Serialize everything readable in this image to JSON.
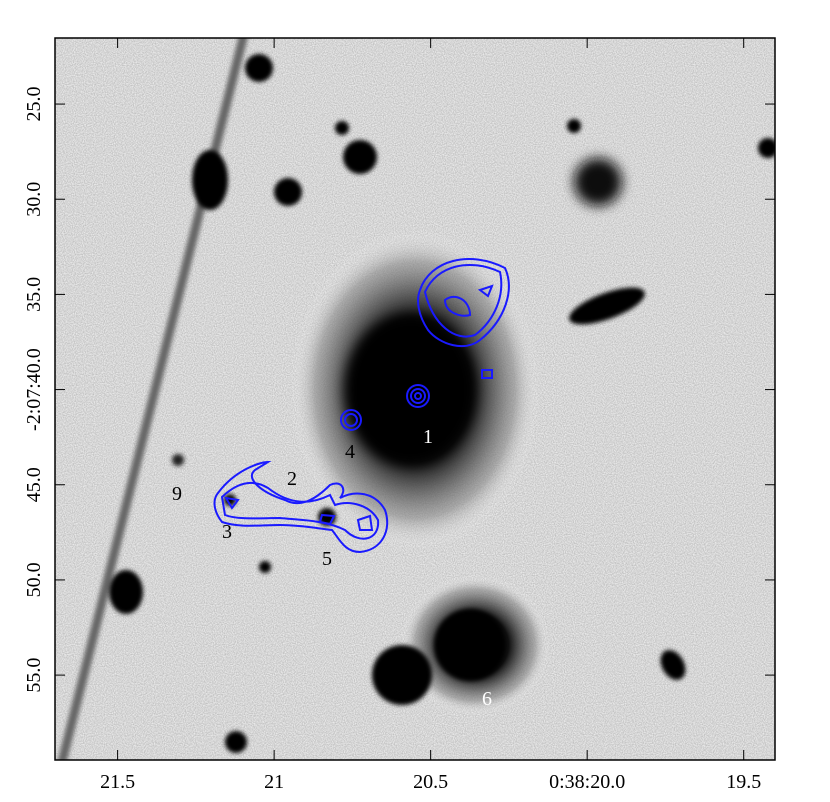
{
  "chart_data": {
    "type": "image",
    "xlim": [
      21.7,
      19.4
    ],
    "xticks": [
      21.5,
      21.0,
      20.5,
      {
        "value": 20.0,
        "label": "0:38:20.0"
      },
      19.5
    ],
    "ylim": [
      21.53,
      59.46
    ],
    "yticks": [
      {
        "value": 25,
        "label": "25.0"
      },
      {
        "value": 30,
        "label": "30.0"
      },
      {
        "value": 35,
        "label": "35.0"
      },
      {
        "value": 40,
        "label": "-2:07:40.0"
      },
      {
        "value": 45,
        "label": "45.0"
      },
      {
        "value": 50,
        "label": "50.0"
      },
      {
        "value": 55,
        "label": "55.0"
      }
    ],
    "annotations": [
      "1",
      "4",
      "2",
      "9",
      "3",
      "5",
      "6"
    ]
  }
}
